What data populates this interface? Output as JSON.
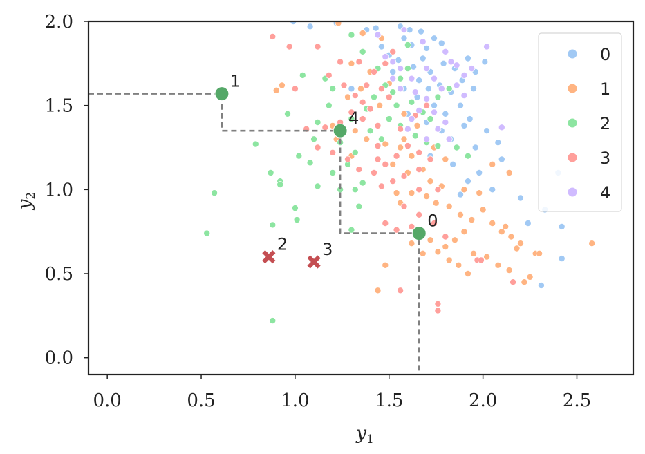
{
  "chart_data": {
    "type": "scatter",
    "title": "",
    "xlabel": "y",
    "xlabel_sub": "1",
    "ylabel": "y",
    "ylabel_sub": "2",
    "xlim": [
      -0.1,
      2.8
    ],
    "ylim": [
      -0.1,
      2.0
    ],
    "xticks": [
      0.0,
      0.5,
      1.0,
      1.5,
      2.0,
      2.5
    ],
    "xtick_labels": [
      "0.0",
      "0.5",
      "1.0",
      "1.5",
      "2.0",
      "2.5"
    ],
    "yticks": [
      0.0,
      0.5,
      1.0,
      1.5,
      2.0
    ],
    "ytick_labels": [
      "0.0",
      "0.5",
      "1.0",
      "1.5",
      "2.0"
    ],
    "grid": false,
    "legend_position": "top-right",
    "series": [
      {
        "name": "0",
        "color": "#a1c9f4",
        "points": [
          [
            0.99,
            2.0
          ],
          [
            1.08,
            1.97
          ],
          [
            1.22,
            1.99
          ],
          [
            1.43,
            1.96
          ],
          [
            1.56,
            1.97
          ],
          [
            1.61,
            1.95
          ],
          [
            1.67,
            1.94
          ],
          [
            1.58,
            1.9
          ],
          [
            1.62,
            1.86
          ],
          [
            1.7,
            1.84
          ],
          [
            1.74,
            1.9
          ],
          [
            1.78,
            1.87
          ],
          [
            1.5,
            1.8
          ],
          [
            1.55,
            1.77
          ],
          [
            1.63,
            1.73
          ],
          [
            1.68,
            1.78
          ],
          [
            1.72,
            1.7
          ],
          [
            1.79,
            1.75
          ],
          [
            1.85,
            1.72
          ],
          [
            1.92,
            1.78
          ],
          [
            1.96,
            1.7
          ],
          [
            2.01,
            1.76
          ],
          [
            1.66,
            1.65
          ],
          [
            1.71,
            1.6
          ],
          [
            1.77,
            1.62
          ],
          [
            1.83,
            1.58
          ],
          [
            1.89,
            1.65
          ],
          [
            1.95,
            1.6
          ],
          [
            1.58,
            1.6
          ],
          [
            1.65,
            1.55
          ],
          [
            1.74,
            1.5
          ],
          [
            1.8,
            1.45
          ],
          [
            1.88,
            1.5
          ],
          [
            1.93,
            1.42
          ],
          [
            1.6,
            1.45
          ],
          [
            1.7,
            1.4
          ],
          [
            1.78,
            1.35
          ],
          [
            1.83,
            1.3
          ],
          [
            1.9,
            1.38
          ],
          [
            2.02,
            1.35
          ],
          [
            2.08,
            1.28
          ],
          [
            1.96,
            1.25
          ],
          [
            1.72,
            1.2
          ],
          [
            1.84,
            1.15
          ],
          [
            1.98,
            1.1
          ],
          [
            2.1,
            1.18
          ],
          [
            1.92,
            1.05
          ],
          [
            2.05,
            1.0
          ],
          [
            1.88,
            0.97
          ],
          [
            2.2,
            0.95
          ],
          [
            2.4,
            1.1
          ],
          [
            2.33,
            0.88
          ],
          [
            2.42,
            0.78
          ],
          [
            2.24,
            0.8
          ],
          [
            2.42,
            0.59
          ],
          [
            2.31,
            0.43
          ],
          [
            1.46,
            1.85
          ],
          [
            1.52,
            1.7
          ],
          [
            1.38,
            1.95
          ],
          [
            1.3,
            1.6
          ]
        ]
      },
      {
        "name": "1",
        "color": "#ffb482",
        "points": [
          [
            0.9,
            1.59
          ],
          [
            0.93,
            1.62
          ],
          [
            1.23,
            1.99
          ],
          [
            1.36,
            1.93
          ],
          [
            1.46,
            1.9
          ],
          [
            1.3,
            1.75
          ],
          [
            1.4,
            1.7
          ],
          [
            1.5,
            1.63
          ],
          [
            1.35,
            1.6
          ],
          [
            1.28,
            1.55
          ],
          [
            1.45,
            1.5
          ],
          [
            1.58,
            1.45
          ],
          [
            1.2,
            1.38
          ],
          [
            1.32,
            1.35
          ],
          [
            1.38,
            1.3
          ],
          [
            1.48,
            1.27
          ],
          [
            1.56,
            1.25
          ],
          [
            1.62,
            1.2
          ],
          [
            1.52,
            1.15
          ],
          [
            1.6,
            1.1
          ],
          [
            1.68,
            1.12
          ],
          [
            1.72,
            1.05
          ],
          [
            1.78,
            1.02
          ],
          [
            1.62,
            0.98
          ],
          [
            1.7,
            0.96
          ],
          [
            1.75,
            0.92
          ],
          [
            1.82,
            0.9
          ],
          [
            1.88,
            0.85
          ],
          [
            1.94,
            0.82
          ],
          [
            2.0,
            0.88
          ],
          [
            2.05,
            0.8
          ],
          [
            2.1,
            0.75
          ],
          [
            2.15,
            0.72
          ],
          [
            2.2,
            0.68
          ],
          [
            2.12,
            0.78
          ],
          [
            1.9,
            0.75
          ],
          [
            1.85,
            0.7
          ],
          [
            1.8,
            0.66
          ],
          [
            1.76,
            0.63
          ],
          [
            1.72,
            0.7
          ],
          [
            1.67,
            0.74
          ],
          [
            1.62,
            0.68
          ],
          [
            1.95,
            0.62
          ],
          [
            2.02,
            0.6
          ],
          [
            2.08,
            0.55
          ],
          [
            2.14,
            0.52
          ],
          [
            2.25,
            0.48
          ],
          [
            2.22,
            0.45
          ],
          [
            2.28,
            0.62
          ],
          [
            2.58,
            0.68
          ],
          [
            1.48,
            0.55
          ],
          [
            1.92,
            0.5
          ],
          [
            1.87,
            0.55
          ],
          [
            1.82,
            0.58
          ],
          [
            1.68,
            0.62
          ],
          [
            1.44,
            0.4
          ],
          [
            2.3,
            0.62
          ],
          [
            2.18,
            0.65
          ],
          [
            1.58,
            1.3
          ],
          [
            1.65,
            1.38
          ],
          [
            1.3,
            1.2
          ],
          [
            1.22,
            1.3
          ],
          [
            2.14,
            1.1
          ],
          [
            2.05,
            1.15
          ],
          [
            1.98,
            0.98
          ],
          [
            1.9,
            1.0
          ],
          [
            1.54,
            0.98
          ],
          [
            1.56,
            0.92
          ],
          [
            1.74,
            1.25
          ],
          [
            1.8,
            1.18
          ]
        ]
      },
      {
        "name": "2",
        "color": "#8de5a1",
        "points": [
          [
            0.53,
            0.74
          ],
          [
            0.57,
            0.98
          ],
          [
            0.79,
            1.27
          ],
          [
            0.87,
            1.1
          ],
          [
            0.92,
            1.05
          ],
          [
            0.92,
            1.03
          ],
          [
            1.0,
            0.89
          ],
          [
            1.01,
            0.82
          ],
          [
            0.88,
            0.79
          ],
          [
            0.88,
            0.22
          ],
          [
            1.02,
            1.2
          ],
          [
            1.08,
            1.16
          ],
          [
            1.1,
            1.3
          ],
          [
            1.12,
            1.4
          ],
          [
            1.18,
            1.5
          ],
          [
            1.12,
            1.02
          ],
          [
            1.2,
            1.1
          ],
          [
            1.24,
            1.0
          ],
          [
            1.28,
            1.15
          ],
          [
            1.32,
            1.22
          ],
          [
            1.26,
            1.35
          ],
          [
            1.3,
            1.42
          ],
          [
            1.38,
            1.48
          ],
          [
            1.42,
            1.55
          ],
          [
            1.48,
            1.62
          ],
          [
            1.52,
            1.58
          ],
          [
            1.56,
            1.66
          ],
          [
            1.6,
            1.72
          ],
          [
            1.54,
            1.5
          ],
          [
            1.62,
            1.52
          ],
          [
            1.68,
            1.46
          ],
          [
            1.72,
            1.42
          ],
          [
            1.76,
            1.55
          ],
          [
            1.82,
            1.6
          ],
          [
            1.4,
            1.35
          ],
          [
            1.46,
            1.3
          ],
          [
            1.5,
            1.42
          ],
          [
            1.56,
            1.38
          ],
          [
            1.64,
            1.32
          ],
          [
            1.7,
            1.28
          ],
          [
            1.76,
            1.26
          ],
          [
            1.86,
            1.25
          ],
          [
            1.92,
            1.2
          ],
          [
            1.6,
            1.86
          ],
          [
            1.3,
            1.92
          ],
          [
            1.36,
            1.82
          ],
          [
            1.04,
            1.68
          ],
          [
            1.16,
            1.66
          ],
          [
            1.2,
            1.6
          ],
          [
            1.44,
            1.72
          ],
          [
            1.34,
            0.9
          ],
          [
            1.3,
            0.76
          ],
          [
            1.36,
            1.04
          ],
          [
            1.32,
            1.0
          ],
          [
            0.96,
            1.45
          ],
          [
            1.24,
            1.28
          ]
        ]
      },
      {
        "name": "3",
        "color": "#ff9f9b",
        "points": [
          [
            0.88,
            1.91
          ],
          [
            0.97,
            1.85
          ],
          [
            1.12,
            1.85
          ],
          [
            1.0,
            1.6
          ],
          [
            1.18,
            1.68
          ],
          [
            1.26,
            1.62
          ],
          [
            1.32,
            1.56
          ],
          [
            1.36,
            1.52
          ],
          [
            1.4,
            1.48
          ],
          [
            1.46,
            1.6
          ],
          [
            1.5,
            1.55
          ],
          [
            1.3,
            1.46
          ],
          [
            1.36,
            1.42
          ],
          [
            1.44,
            1.38
          ],
          [
            1.24,
            1.4
          ],
          [
            1.16,
            1.37
          ],
          [
            1.12,
            1.25
          ],
          [
            1.2,
            1.22
          ],
          [
            1.28,
            1.18
          ],
          [
            1.34,
            1.12
          ],
          [
            1.42,
            1.1
          ],
          [
            1.48,
            1.15
          ],
          [
            1.54,
            1.2
          ],
          [
            1.6,
            1.26
          ],
          [
            1.66,
            1.22
          ],
          [
            1.72,
            1.18
          ],
          [
            1.58,
            1.08
          ],
          [
            1.52,
            1.05
          ],
          [
            1.46,
            1.02
          ],
          [
            1.66,
            1.0
          ],
          [
            1.76,
            1.0
          ],
          [
            1.58,
            0.9
          ],
          [
            1.62,
            0.78
          ],
          [
            1.54,
            0.76
          ],
          [
            1.48,
            0.8
          ],
          [
            1.66,
            0.85
          ],
          [
            1.74,
            0.8
          ],
          [
            1.8,
            0.72
          ],
          [
            2.16,
            0.45
          ],
          [
            1.76,
            0.32
          ],
          [
            1.76,
            0.28
          ],
          [
            1.56,
            0.4
          ],
          [
            1.38,
            1.62
          ],
          [
            1.42,
            1.7
          ],
          [
            1.48,
            1.75
          ],
          [
            1.52,
            1.82
          ],
          [
            1.34,
            1.76
          ],
          [
            1.56,
            1.36
          ],
          [
            1.64,
            1.44
          ],
          [
            1.7,
            1.5
          ],
          [
            1.06,
            1.36
          ],
          [
            1.44,
            1.26
          ],
          [
            1.24,
            1.76
          ],
          [
            1.66,
            1.12
          ],
          [
            1.97,
            0.58
          ],
          [
            1.99,
            0.58
          ],
          [
            1.44,
            1.18
          ]
        ]
      },
      {
        "name": "4",
        "color": "#d0bbff",
        "points": [
          [
            1.44,
            1.92
          ],
          [
            1.58,
            1.95
          ],
          [
            1.68,
            1.88
          ],
          [
            1.8,
            1.82
          ],
          [
            1.83,
            1.76
          ],
          [
            1.86,
            1.74
          ],
          [
            2.02,
            1.85
          ],
          [
            1.7,
            1.72
          ],
          [
            1.74,
            1.66
          ],
          [
            1.78,
            1.6
          ],
          [
            1.86,
            1.62
          ],
          [
            1.9,
            1.56
          ],
          [
            1.64,
            1.58
          ],
          [
            1.7,
            1.54
          ],
          [
            1.74,
            1.46
          ],
          [
            1.8,
            1.4
          ],
          [
            1.66,
            1.47
          ],
          [
            1.62,
            1.42
          ],
          [
            1.6,
            1.36
          ],
          [
            1.7,
            1.3
          ],
          [
            1.76,
            1.36
          ],
          [
            1.82,
            1.3
          ],
          [
            2.1,
            1.37
          ],
          [
            1.52,
            1.66
          ],
          [
            1.56,
            1.72
          ],
          [
            1.48,
            1.79
          ],
          [
            1.52,
            1.76
          ],
          [
            1.62,
            1.66
          ],
          [
            1.56,
            1.6
          ],
          [
            1.9,
            1.68
          ],
          [
            1.94,
            1.72
          ]
        ]
      }
    ],
    "centers": [
      {
        "label": "0",
        "x": 1.66,
        "y": 0.74,
        "color": "#55a868",
        "marker": "circle"
      },
      {
        "label": "1",
        "x": 0.61,
        "y": 1.57,
        "color": "#55a868",
        "marker": "circle"
      },
      {
        "label": "4",
        "x": 1.24,
        "y": 1.35,
        "color": "#55a868",
        "marker": "circle"
      },
      {
        "label": "2",
        "x": 0.86,
        "y": 0.6,
        "color": "#c44e52",
        "marker": "x"
      },
      {
        "label": "3",
        "x": 1.1,
        "y": 0.57,
        "color": "#c44e52",
        "marker": "x"
      }
    ],
    "path": [
      [
        -0.1,
        1.57
      ],
      [
        0.61,
        1.57
      ],
      [
        0.61,
        1.35
      ],
      [
        1.24,
        1.35
      ],
      [
        1.24,
        0.74
      ],
      [
        1.66,
        0.74
      ],
      [
        1.66,
        -0.1
      ]
    ],
    "path_color": "#808080"
  }
}
